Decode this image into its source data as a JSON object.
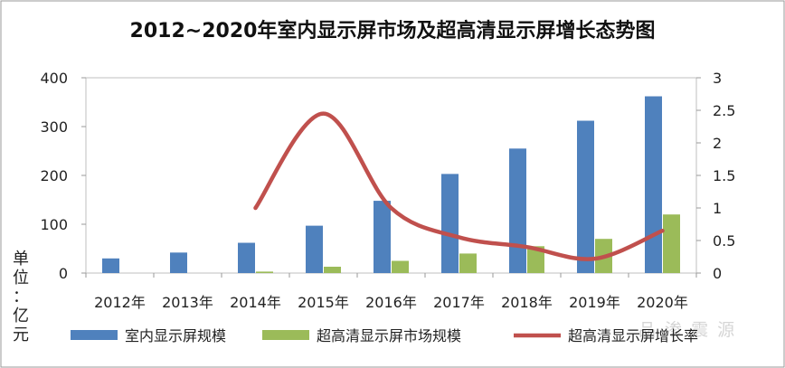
{
  "chart_data": {
    "type": "bar",
    "title": "2012~2020年室内显示屏市场及超高清显示屏增长态势图",
    "unit_label": [
      "单",
      "位",
      "：",
      "亿",
      "元"
    ],
    "categories": [
      "2012年",
      "2013年",
      "2014年",
      "2015年",
      "2016年",
      "2017年",
      "2018年",
      "2019年",
      "2020年"
    ],
    "y_left": {
      "ticks": [
        "0",
        "100",
        "200",
        "300",
        "400"
      ],
      "min": 0,
      "max": 400
    },
    "y_right": {
      "ticks": [
        "0",
        "0.5",
        "1",
        "1.5",
        "2",
        "2.5",
        "3"
      ],
      "min": 0,
      "max": 3
    },
    "series": [
      {
        "name": "室内显示屏规模",
        "kind": "bar",
        "axis": "left",
        "color": "#4f81bd",
        "values": [
          30,
          42,
          62,
          97,
          148,
          203,
          255,
          312,
          362
        ]
      },
      {
        "name": "超高清显示屏市场规模",
        "kind": "bar",
        "axis": "left",
        "color": "#9bbb59",
        "values": [
          0,
          0,
          3,
          13,
          25,
          40,
          55,
          70,
          120
        ]
      },
      {
        "name": "超高清显示屏增长率",
        "kind": "line",
        "axis": "right",
        "color": "#c0504d",
        "values": [
          null,
          null,
          1.0,
          2.45,
          1.0,
          0.55,
          0.4,
          0.22,
          0.65
        ]
      }
    ],
    "legend_position": "bottom",
    "grid": false
  },
  "watermark": "品 渗 震 源"
}
